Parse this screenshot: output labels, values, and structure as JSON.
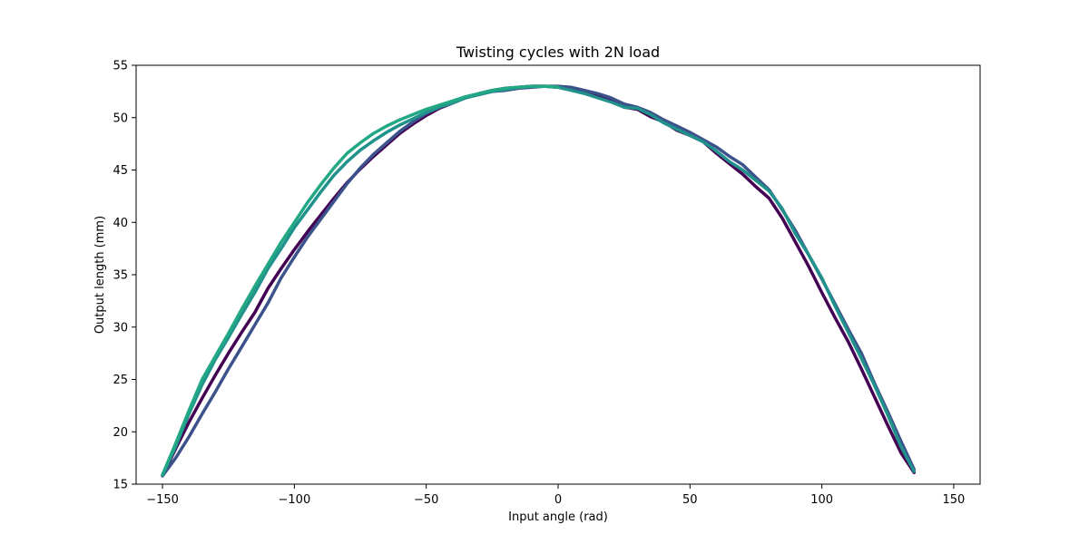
{
  "chart_data": {
    "type": "line",
    "title": "Twisting cycles with 2N load",
    "xlabel": "Input angle (rad)",
    "ylabel": "Output length (mm)",
    "xlim": [
      -160,
      160
    ],
    "ylim": [
      15,
      55
    ],
    "xticks": [
      -150,
      -100,
      -50,
      0,
      50,
      100,
      150
    ],
    "yticks": [
      15,
      20,
      25,
      30,
      35,
      40,
      45,
      50,
      55
    ],
    "grid": false,
    "series": [
      {
        "color": "#440154",
        "x": [
          -150,
          -145,
          -140,
          -135,
          -130,
          -125,
          -120,
          -115,
          -110,
          -105,
          -100,
          -95,
          -90,
          -85,
          -80,
          -75,
          -70,
          -65,
          -60,
          -55,
          -50,
          -45,
          -40,
          -35,
          -30,
          -25,
          -20,
          -15,
          -10,
          -5,
          0,
          5,
          10,
          15,
          20,
          25,
          30,
          35,
          40,
          45,
          50,
          55,
          60,
          65,
          70,
          75,
          80,
          85,
          90,
          95,
          100,
          105,
          110,
          115,
          120,
          125,
          130,
          135
        ],
        "y": [
          15.8,
          18.4,
          20.9,
          23.2,
          25.4,
          27.5,
          29.5,
          31.4,
          33.7,
          35.6,
          37.4,
          39.1,
          40.7,
          42.3,
          43.8,
          45.1,
          46.3,
          47.4,
          48.5,
          49.4,
          50.2,
          50.9,
          51.4,
          51.9,
          52.3,
          52.6,
          52.8,
          52.9,
          53.0,
          53.0,
          52.9,
          52.7,
          52.4,
          52.0,
          51.6,
          51.0,
          50.8,
          50.1,
          49.6,
          48.8,
          48.3,
          47.7,
          46.6,
          45.6,
          44.6,
          43.4,
          42.3,
          40.4,
          38.1,
          35.8,
          33.3,
          30.9,
          28.6,
          26.0,
          23.3,
          20.6,
          18.0,
          16.1
        ]
      },
      {
        "color": "#3b528b",
        "x": [
          -150,
          -145,
          -140,
          -135,
          -130,
          -125,
          -120,
          -115,
          -110,
          -105,
          -100,
          -95,
          -90,
          -85,
          -80,
          -75,
          -70,
          -65,
          -60,
          -55,
          -50,
          -45,
          -40,
          -35,
          -30,
          -25,
          -20,
          -15,
          -10,
          -5,
          0,
          5,
          10,
          15,
          20,
          25,
          30,
          35,
          40,
          45,
          50,
          55,
          60,
          65,
          70,
          75,
          80,
          85,
          90,
          95,
          100,
          105,
          110,
          115,
          120,
          125,
          130,
          135
        ],
        "y": [
          15.8,
          17.5,
          19.5,
          21.7,
          23.8,
          26.0,
          28.1,
          30.2,
          32.3,
          34.7,
          36.7,
          38.6,
          40.3,
          42.0,
          43.7,
          45.2,
          46.5,
          47.6,
          48.7,
          49.6,
          50.4,
          51.0,
          51.5,
          51.9,
          52.2,
          52.5,
          52.6,
          52.8,
          52.9,
          53.0,
          53.0,
          52.9,
          52.6,
          52.3,
          51.9,
          51.3,
          51.0,
          50.5,
          49.8,
          49.2,
          48.6,
          47.9,
          47.2,
          46.3,
          45.5,
          44.3,
          43.1,
          41.2,
          39.2,
          36.9,
          34.6,
          32.2,
          29.8,
          27.5,
          24.6,
          21.9,
          19.1,
          16.4
        ]
      },
      {
        "color": "#21918c",
        "x": [
          -150,
          -145,
          -140,
          -135,
          -130,
          -125,
          -120,
          -115,
          -110,
          -105,
          -100,
          -95,
          -90,
          -85,
          -80,
          -75,
          -70,
          -65,
          -60,
          -55,
          -50,
          -45,
          -40,
          -35,
          -30,
          -25,
          -20,
          -15,
          -10,
          -5,
          0,
          5,
          10,
          15,
          20,
          25,
          30,
          35,
          40,
          45,
          50,
          55,
          60,
          65,
          70,
          75,
          80,
          85,
          90,
          95,
          100,
          105,
          110,
          115,
          120,
          125,
          130,
          135
        ],
        "y": [
          15.9,
          18.6,
          21.7,
          24.5,
          26.9,
          29.0,
          31.2,
          33.3,
          35.6,
          37.5,
          39.5,
          41.2,
          42.9,
          44.5,
          45.8,
          46.9,
          47.8,
          48.6,
          49.3,
          49.9,
          50.5,
          51.0,
          51.4,
          51.9,
          52.2,
          52.5,
          52.7,
          52.9,
          53.0,
          53.0,
          52.9,
          52.6,
          52.3,
          51.9,
          51.5,
          51.0,
          50.9,
          50.3,
          49.5,
          48.9,
          48.3,
          47.7,
          46.8,
          45.8,
          45.0,
          44.0,
          43.0,
          41.3,
          38.9,
          36.9,
          34.7,
          32.0,
          29.5,
          27.0,
          24.4,
          21.6,
          18.6,
          16.2
        ]
      },
      {
        "color": "#22a884",
        "x": [
          -150,
          -145,
          -140,
          -135,
          -130,
          -125,
          -120,
          -115,
          -110,
          -105,
          -100,
          -95,
          -90,
          -85,
          -80,
          -75,
          -70,
          -65,
          -60,
          -55,
          -50,
          -45,
          -40,
          -35,
          -30,
          -25,
          -20,
          -15,
          -10,
          -5,
          0
        ],
        "y": [
          15.9,
          18.9,
          22.0,
          25.0,
          27.2,
          29.4,
          31.7,
          33.9,
          36.0,
          38.1,
          40.0,
          41.9,
          43.6,
          45.2,
          46.6,
          47.6,
          48.5,
          49.2,
          49.8,
          50.3,
          50.8,
          51.2,
          51.6,
          52.0,
          52.3,
          52.6,
          52.8,
          52.9,
          53.0,
          53.0,
          52.9
        ]
      }
    ]
  }
}
